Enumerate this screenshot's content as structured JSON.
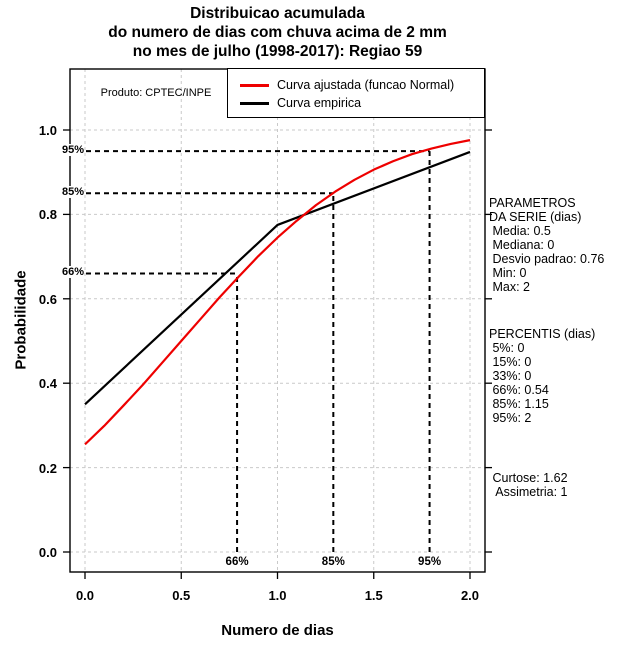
{
  "title": {
    "line1": "Distribuicao acumulada",
    "line2": "do numero de dias com chuva acima de 2 mm",
    "line3": "no mes de julho (1998-2017): Regiao 59"
  },
  "produto_label": "Produto: CPTEC/INPE",
  "chart_data": {
    "type": "line",
    "title": "Distribuicao acumulada do numero de dias com chuva acima de 2 mm no mes de julho (1998-2017): Regiao 59",
    "xlabel": "Numero de dias",
    "ylabel": "Probabilidade",
    "xlim": [
      0,
      2
    ],
    "ylim": [
      0,
      1
    ],
    "grid": true,
    "grid_color": "#c9c9c9",
    "legend_position": "top",
    "xticks": {
      "values": [
        0,
        0.5,
        1,
        1.5,
        2
      ],
      "labels": [
        "0.0",
        "0.5",
        "1.0",
        "1.5",
        "2.0"
      ]
    },
    "yticks": {
      "values": [
        0,
        0.2,
        0.4,
        0.6,
        0.8,
        1
      ],
      "labels": [
        "0.0",
        "0.2",
        "0.4",
        "0.6",
        "0.8",
        "1.0"
      ]
    },
    "series": [
      {
        "name": "Curva ajustada (funcao Normal)",
        "color": "#ee0000",
        "points": [
          [
            0,
            0.255
          ],
          [
            0.1,
            0.299
          ],
          [
            0.2,
            0.347
          ],
          [
            0.3,
            0.396
          ],
          [
            0.4,
            0.448
          ],
          [
            0.5,
            0.5
          ],
          [
            0.6,
            0.552
          ],
          [
            0.7,
            0.604
          ],
          [
            0.8,
            0.653
          ],
          [
            0.9,
            0.701
          ],
          [
            1,
            0.745
          ],
          [
            1.1,
            0.785
          ],
          [
            1.2,
            0.822
          ],
          [
            1.3,
            0.854
          ],
          [
            1.4,
            0.882
          ],
          [
            1.5,
            0.906
          ],
          [
            1.6,
            0.926
          ],
          [
            1.7,
            0.943
          ],
          [
            1.8,
            0.956
          ],
          [
            1.9,
            0.967
          ],
          [
            2,
            0.976
          ]
        ]
      },
      {
        "name": "Curva empirica",
        "color": "#000000",
        "points": [
          [
            0,
            0.35
          ],
          [
            1,
            0.775
          ],
          [
            2,
            0.948
          ]
        ]
      }
    ],
    "percentile_markers": [
      {
        "label": "66%",
        "level": 0.66,
        "x": 0.79
      },
      {
        "label": "85%",
        "level": 0.85,
        "x": 1.29
      },
      {
        "label": "95%",
        "level": 0.95,
        "x": 1.79
      }
    ]
  },
  "side_panel": {
    "parametros": [
      "PARAMETROS",
      "DA SERIE (dias)",
      " Media: 0.5",
      " Mediana: 0",
      " Desvio padrao: 0.76",
      " Min: 0",
      " Max: 2"
    ],
    "percentis": [
      "PERCENTIS (dias)",
      " 5%: 0",
      " 15%: 0",
      " 33%: 0",
      " 66%: 0.54",
      " 85%: 1.15",
      " 95%: 2"
    ],
    "momentos": [
      " Curtose: 1.62",
      "  Assimetria: 1"
    ]
  }
}
